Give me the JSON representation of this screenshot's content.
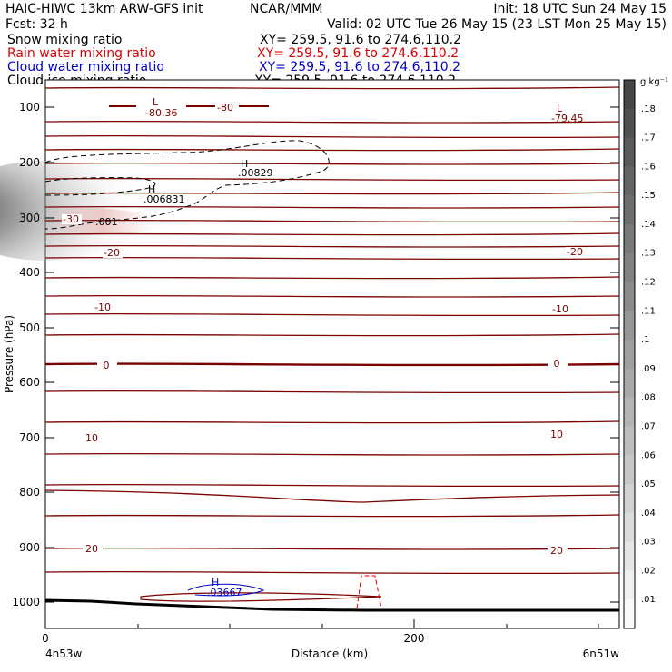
{
  "header": {
    "line1_left": "HAIC-HIWC 13km ARW-GFS init",
    "line1_mid": "NCAR/MMM",
    "line1_right": "Init: 18 UTC Sun 24 May 15",
    "line2_left": "Fcst:     32 h",
    "line2_right": "Valid: 02 UTC Tue 26 May 15 (23 LST Mon 25 May 15)"
  },
  "fields": [
    {
      "label": "Snow mixing ratio",
      "xy": "XY= 259.5, 91.6 to 274.6,110.2",
      "color": "#000000"
    },
    {
      "label": "Rain water mixing ratio",
      "xy": "XY= 259.5, 91.6 to 274.6,110.2",
      "color": "#dd0000"
    },
    {
      "label": "Cloud water mixing ratio",
      "xy": "XY= 259.5, 91.6 to 274.6,110.2",
      "color": "#0000cc"
    },
    {
      "label": "Cloud ice mixing ratio",
      "xy": "XY= 259.5, 91.6 to 274.6,110.2",
      "color": "#000000"
    }
  ],
  "colors": {
    "temperature_contour": "#7a0000",
    "rain_contour": "#dd0000",
    "cloud_water_contour": "#0000cc",
    "terrain": "#000000"
  },
  "chart_data": {
    "type": "contour cross-section",
    "ylabel": "Pressure (hPa)",
    "xlabel": "Distance (km)",
    "x_ticks": [
      "0",
      "200"
    ],
    "y_ticks": [
      "100",
      "200",
      "300",
      "400",
      "500",
      "600",
      "700",
      "800",
      "900",
      "1000"
    ],
    "x_endpoint_labels": {
      "left": "4n53w",
      "right": "6n51w"
    },
    "xlim": [
      0,
      300
    ],
    "ylim": [
      1050,
      50
    ],
    "y_scale": "log-pressure",
    "colorbar": {
      "units": "g kg⁻¹",
      "ticks": [
        ".01",
        ".02",
        ".03",
        ".04",
        ".05",
        ".06",
        ".07",
        ".08",
        ".09",
        ".1",
        ".11",
        ".12",
        ".13",
        ".14",
        ".15",
        ".16",
        ".17",
        ".18"
      ]
    },
    "temperature_contours": [
      {
        "value": -80,
        "label": "-80"
      },
      {
        "value": -30,
        "label": "-30"
      },
      {
        "value": -20,
        "label": "-20"
      },
      {
        "value": -10,
        "label": "-10"
      },
      {
        "value": 0,
        "label": "0"
      },
      {
        "value": 10,
        "label": "10"
      },
      {
        "value": 20,
        "label": "20"
      }
    ],
    "extrema": [
      {
        "type": "L",
        "value": "-80.36",
        "x_km": 52,
        "p_hpa": 108
      },
      {
        "type": "L",
        "value": "-79.45",
        "x_km": 282,
        "p_hpa": 112
      },
      {
        "type": "H",
        "value": ".00829",
        "x_km": 108,
        "p_hpa": 210
      },
      {
        "type": "H",
        "value": ".006831",
        "x_km": 57,
        "p_hpa": 255
      },
      {
        "type": "H",
        "value": ".03667",
        "x_km": 91,
        "p_hpa": 985
      },
      {
        "type": "",
        "value": ".001",
        "x_km": 32,
        "p_hpa": 305
      }
    ]
  }
}
